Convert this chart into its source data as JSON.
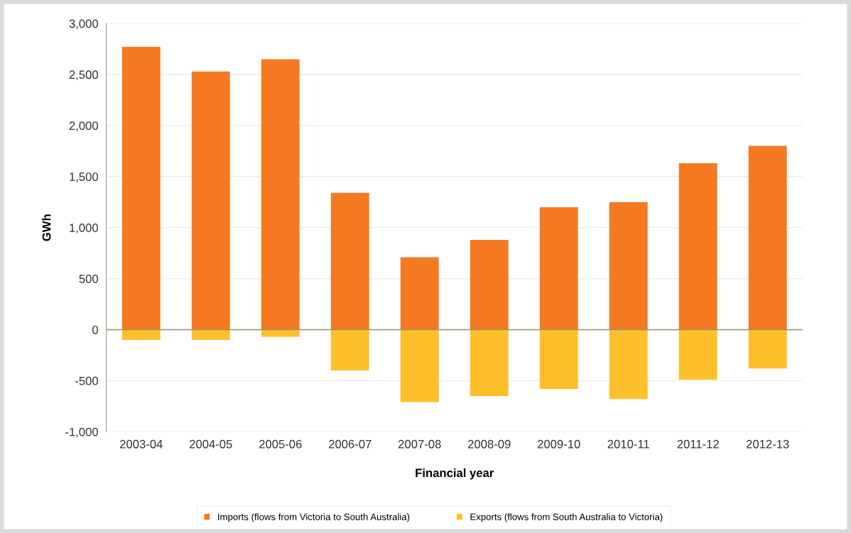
{
  "chart_data": {
    "type": "bar",
    "stacked": true,
    "xlabel": "Financial year",
    "ylabel": "GWh",
    "categories": [
      "2003-04",
      "2004-05",
      "2005-06",
      "2006-07",
      "2007-08",
      "2008-09",
      "2009-10",
      "2010-11",
      "2011-12",
      "2012-13"
    ],
    "series": [
      {
        "name": "Imports (flows from Victoria to South Australia)",
        "color": "#f47920",
        "values": [
          2770,
          2530,
          2650,
          1340,
          710,
          880,
          1200,
          1250,
          1630,
          1800
        ]
      },
      {
        "name": "Exports (flows from South Australia to Victoria)",
        "color": "#fdc02a",
        "values": [
          -100,
          -100,
          -70,
          -400,
          -710,
          -650,
          -580,
          -680,
          -490,
          -380
        ]
      }
    ],
    "ylim": [
      -1000,
      3000
    ],
    "yticks": [
      {
        "value": -1000,
        "label": "-1,000"
      },
      {
        "value": -500,
        "label": "-500"
      },
      {
        "value": 0,
        "label": "0"
      },
      {
        "value": 500,
        "label": "500"
      },
      {
        "value": 1000,
        "label": "1,000"
      },
      {
        "value": 1500,
        "label": "1,500"
      },
      {
        "value": 2000,
        "label": "2,000"
      },
      {
        "value": 2500,
        "label": "2,500"
      },
      {
        "value": 3000,
        "label": "3,000"
      }
    ],
    "ref_lines": [
      {
        "axis": "y",
        "value": 0,
        "color": "#a09070"
      }
    ],
    "grid": "y",
    "legend": "bottom"
  }
}
